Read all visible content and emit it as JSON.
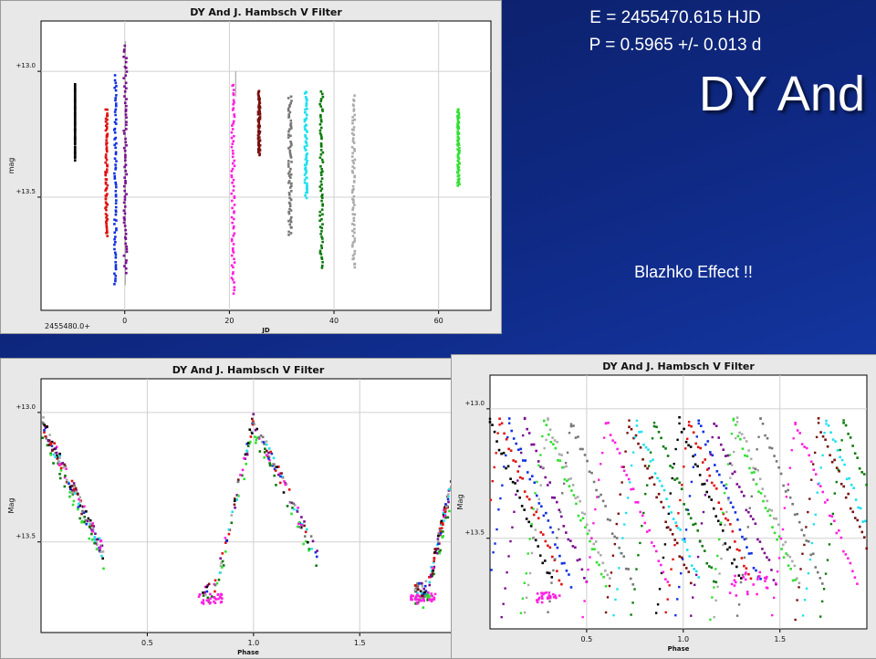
{
  "slide": {
    "epoch_text": "E = 2455470.615 HJD",
    "period_text": "P = 0.5965 +/- 0.013 d",
    "title": "DY And",
    "note": "Blazhko Effect !!"
  },
  "colors": {
    "black": "#000000",
    "red": "#e01010",
    "blue": "#1030e0",
    "purple": "#7a0a90",
    "magenta": "#ff20e0",
    "darkred": "#7a1010",
    "gray": "#777777",
    "cyan": "#20e0f0",
    "green": "#0a7a0a",
    "lightgray": "#aaaaaa",
    "lime": "#30e030"
  },
  "chart_data": [
    {
      "type": "scatter",
      "title": "DY And J. Hambsch V Filter",
      "xlabel": "JD",
      "ylabel": "mag",
      "x_offset_label": "2455480.0+",
      "xlim": [
        -16,
        70
      ],
      "ylim": [
        13.95,
        12.8
      ],
      "x_ticks": [
        0,
        20,
        40,
        60
      ],
      "y_ticks": [
        13.0,
        13.5
      ],
      "y_tick_labels": [
        "+13.0",
        "+13.5"
      ],
      "grid": true,
      "series": [
        {
          "color": "black",
          "x": [
            -9.5,
            -9.5
          ],
          "y": [
            13.05,
            13.35
          ]
        },
        {
          "color": "red",
          "x": [
            -3.7,
            -3.3
          ],
          "y": [
            13.15,
            13.65
          ]
        },
        {
          "color": "blue",
          "x": [
            -2.0,
            -1.6
          ],
          "y": [
            13.02,
            13.85
          ]
        },
        {
          "color": "purple",
          "x": [
            -0.2,
            0.4
          ],
          "y": [
            12.9,
            13.8
          ]
        },
        {
          "color": "magenta",
          "x": [
            20.4,
            21.0
          ],
          "y": [
            13.05,
            13.88
          ]
        },
        {
          "color": "darkred",
          "x": [
            25.5,
            25.9
          ],
          "y": [
            13.08,
            13.33
          ]
        },
        {
          "color": "gray",
          "x": [
            31.3,
            31.9
          ],
          "y": [
            13.1,
            13.65
          ]
        },
        {
          "color": "cyan",
          "x": [
            34.4,
            34.9
          ],
          "y": [
            13.08,
            13.5
          ]
        },
        {
          "color": "green",
          "x": [
            37.3,
            37.9
          ],
          "y": [
            13.08,
            13.78
          ]
        },
        {
          "color": "lightgray",
          "x": [
            43.5,
            44.0
          ],
          "y": [
            13.1,
            13.78
          ]
        },
        {
          "color": "lime",
          "x": [
            63.6,
            64.0
          ],
          "y": [
            13.15,
            13.45
          ]
        }
      ]
    },
    {
      "type": "scatter",
      "title": "DY And J. Hambsch V Filter",
      "xlabel": "Phase",
      "ylabel": "Mag",
      "xlim": [
        0,
        1.95
      ],
      "ylim": [
        13.85,
        12.87
      ],
      "x_ticks": [
        0.5,
        1.0,
        1.5
      ],
      "x_tick_labels": [
        "0.5",
        "1.0",
        "1.5"
      ],
      "y_ticks": [
        13.0,
        13.5
      ],
      "y_tick_labels": [
        "+13.0",
        "+13.5"
      ],
      "grid": true,
      "note": "Folded light curve: rapid rise near phase 0.85-1.0, slow decline to phase ~0.35"
    },
    {
      "type": "scatter",
      "title": "DY And J. Hambsch V Filter",
      "xlabel": "Phase",
      "ylabel": "Mag",
      "xlim": [
        0,
        1.95
      ],
      "ylim": [
        13.85,
        12.87
      ],
      "x_ticks": [
        0.5,
        1.0,
        1.5
      ],
      "x_tick_labels": [
        "0.5",
        "1.0",
        "1.5"
      ],
      "y_ticks": [
        13.0,
        13.5
      ],
      "y_tick_labels": [
        "+13.0",
        "+13.5"
      ],
      "grid": true,
      "note": "Folded with alternate period: nights scatter into separate shifted tracks"
    }
  ]
}
